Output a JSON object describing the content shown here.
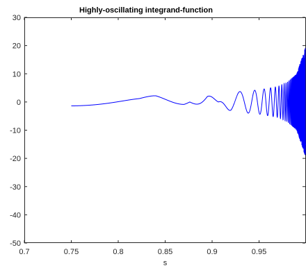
{
  "chart_data": {
    "type": "line",
    "title": "Highly-oscillating integrand-function",
    "xlabel": "s",
    "ylabel": "",
    "xlim": [
      0.7,
      1.0
    ],
    "ylim": [
      -50,
      30
    ],
    "xticks": [
      0.7,
      0.75,
      0.8,
      0.85,
      0.9,
      0.95
    ],
    "xtick_labels": [
      "0.7",
      "0.75",
      "0.8",
      "0.85",
      "0.9",
      "0.95"
    ],
    "yticks": [
      30,
      20,
      10,
      0,
      -10,
      -20,
      -30,
      -40,
      -50
    ],
    "ytick_labels": [
      "30",
      "20",
      "10",
      "0",
      "-10",
      "-20",
      "-30",
      "-40",
      "-50"
    ],
    "grid": false,
    "box": true,
    "series": [
      {
        "color": "#0000ff",
        "x_range": [
          0.75,
          1.0
        ],
        "points": [
          [
            0.75,
            -1.4
          ],
          [
            0.8,
            0.1
          ],
          [
            0.84,
            2.4
          ],
          [
            0.87,
            1.0
          ],
          [
            0.895,
            -3.0
          ],
          [
            0.92,
            3.4
          ],
          [
            0.95,
            4.3
          ],
          [
            0.97,
            5.5
          ],
          [
            0.98,
            7.0
          ],
          [
            0.99,
            10.0
          ],
          [
            0.997,
            17.0
          ],
          [
            1.0,
            20.0
          ]
        ]
      }
    ]
  }
}
